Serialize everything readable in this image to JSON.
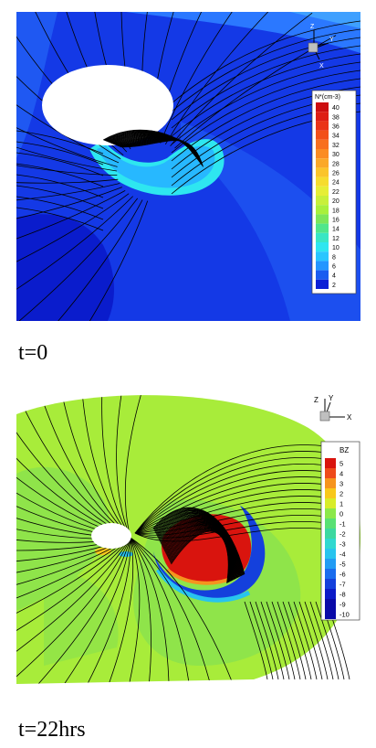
{
  "panels": [
    {
      "caption": "t=0",
      "legend_title": "N*(cm-3)",
      "legend_ticks": [
        "40",
        "38",
        "36",
        "34",
        "32",
        "30",
        "28",
        "26",
        "24",
        "22",
        "20",
        "18",
        "16",
        "14",
        "12",
        "10",
        "8",
        "6",
        "4",
        "2"
      ],
      "axes": {
        "z": "Z",
        "y": "Y",
        "x": "X"
      }
    },
    {
      "caption": "t=22hrs",
      "legend_title": "BZ",
      "legend_ticks": [
        "5",
        "4",
        "3",
        "2",
        "1",
        "0",
        "-1",
        "-2",
        "-3",
        "-4",
        "-5",
        "-6",
        "-7",
        "-8",
        "-9",
        "-10"
      ],
      "axes": {
        "z": "Z",
        "y": "Y",
        "x": "X"
      }
    }
  ],
  "colors": {
    "density_scale": [
      "#0b1fd6",
      "#1a5cf0",
      "#2496ff",
      "#29c6ff",
      "#2ee6f0",
      "#39e6c4",
      "#50e68c",
      "#7ce65a",
      "#a8f03c",
      "#c8f03a",
      "#e6ee36",
      "#f6dc2e",
      "#fbc42a",
      "#fba828",
      "#fb8c22",
      "#f8701e",
      "#f2501a",
      "#ea3418",
      "#de1e14",
      "#cc0e10"
    ],
    "bz_scale": [
      "#d9140e",
      "#ee4a1a",
      "#f6941e",
      "#f8c81c",
      "#d8ec2a",
      "#8ce84a",
      "#58e074",
      "#3cd8a0",
      "#30d8d0",
      "#28c4ee",
      "#229cf4",
      "#1a6cee",
      "#1440dc",
      "#0c1ac8",
      "#0a0aa8"
    ]
  }
}
